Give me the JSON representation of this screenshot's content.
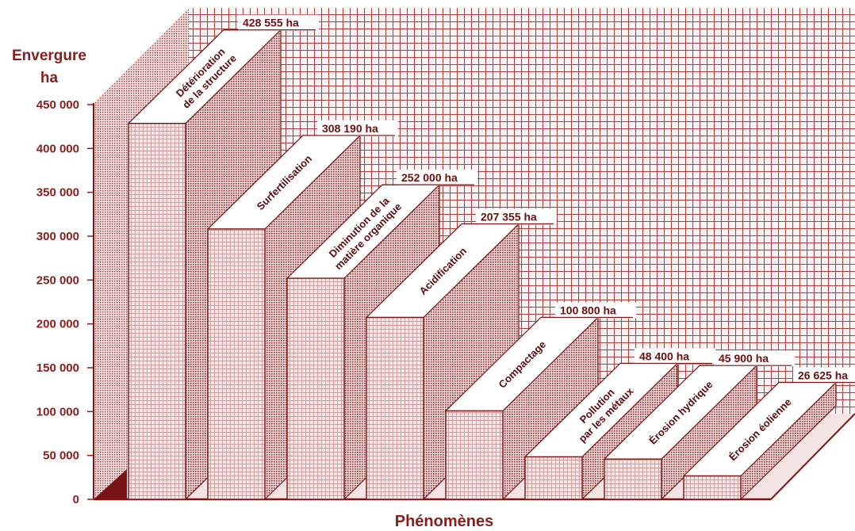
{
  "chart_data": {
    "type": "bar",
    "ylabel": "Envergure",
    "yunit": "ha",
    "xlabel": "Phénomènes",
    "ylim": [
      0,
      450000
    ],
    "yticks": [
      0,
      50000,
      100000,
      150000,
      200000,
      250000,
      300000,
      350000,
      400000,
      450000
    ],
    "ytick_labels": [
      "0",
      "50 000",
      "100 000",
      "150 000",
      "200 000",
      "250 000",
      "300 000",
      "350 000",
      "400 000",
      "450 000"
    ],
    "categories": [
      [
        "Détérioration",
        "de la structure"
      ],
      [
        "Surfertilisation"
      ],
      [
        "Diminution de la",
        "matière organique"
      ],
      [
        "Acidification"
      ],
      [
        "Compactage"
      ],
      [
        "Pollution",
        "par les métaux"
      ],
      [
        "Érosion hydrique"
      ],
      [
        "Érosion éolienne"
      ]
    ],
    "values": [
      428555,
      308190,
      252000,
      207355,
      100800,
      48400,
      45900,
      26625
    ],
    "value_labels": [
      "428 555 ha",
      "308 190 ha",
      "252 000 ha",
      "207 355 ha",
      "100 800 ha",
      "48 400 ha",
      "45 900 ha",
      "26 625 ha"
    ],
    "grid": true,
    "colors": {
      "accent": "#8a1c1c",
      "grid": "#c8a8a8",
      "front": "#f6e6e6",
      "side": "#c58a8a",
      "top": "#ffffff"
    }
  }
}
